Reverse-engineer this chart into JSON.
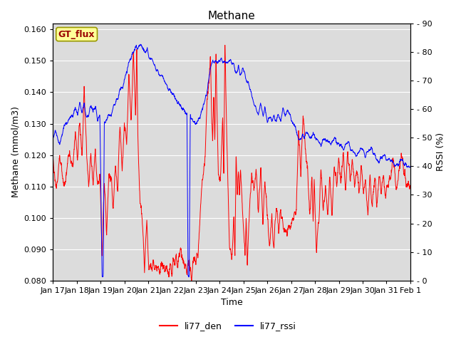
{
  "title": "Methane",
  "xlabel": "Time",
  "ylabel_left": "Methane (mmol/m3)",
  "ylabel_right": "RSSI (%)",
  "ylim_left": [
    0.08,
    0.162
  ],
  "ylim_right": [
    0,
    90
  ],
  "yticks_left": [
    0.08,
    0.09,
    0.1,
    0.11,
    0.12,
    0.13,
    0.14,
    0.15,
    0.16
  ],
  "yticks_right": [
    0,
    10,
    20,
    30,
    40,
    50,
    60,
    70,
    80,
    90
  ],
  "xtick_labels": [
    "Jan 17",
    "Jan 18",
    "Jan 19",
    "Jan 20",
    "Jan 21",
    "Jan 22",
    "Jan 23",
    "Jan 24",
    "Jan 25",
    "Jan 26",
    "Jan 27",
    "Jan 28",
    "Jan 29",
    "Jan 30",
    "Jan 31",
    "Feb 1"
  ],
  "color_red": "#ff0000",
  "color_blue": "#0000ff",
  "legend_label_red": "li77_den",
  "legend_label_blue": "li77_rssi",
  "annotation_text": "GT_flux",
  "annotation_bg": "#ffff99",
  "annotation_border": "#999900",
  "plot_bg_color": "#dcdcdc",
  "fig_bg_color": "#ffffff",
  "title_fontsize": 11,
  "axis_label_fontsize": 9,
  "tick_fontsize": 8
}
